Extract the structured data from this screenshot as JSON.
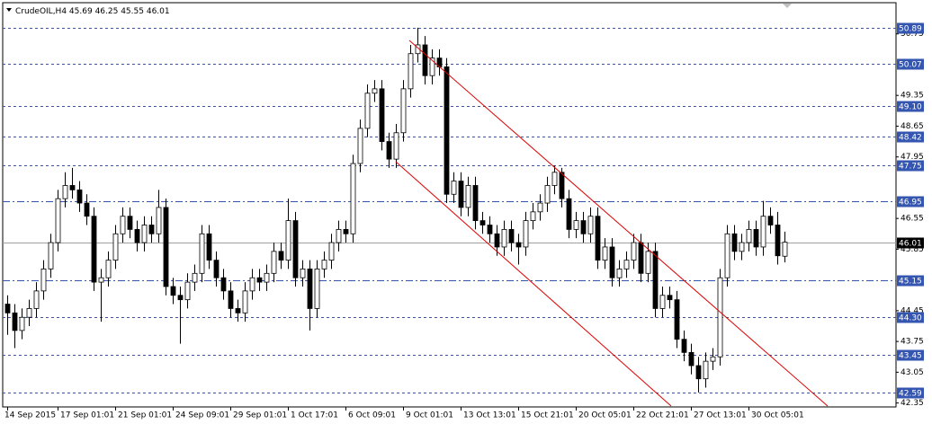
{
  "chart_data": {
    "type": "candlestick",
    "title": "CrudeOIL,H4",
    "categories": [
      "14 Sep 2015",
      null,
      null,
      null,
      null,
      null,
      null,
      "17 Sep 01:01",
      null,
      null,
      null,
      null,
      null,
      null,
      null,
      "21 Sep 01:01",
      null,
      null,
      null,
      null,
      null,
      null,
      null,
      "24 Sep 09:01",
      null,
      null,
      null,
      null,
      null,
      null,
      null,
      "29 Sep 01:01",
      null,
      null,
      null,
      null,
      null,
      null,
      null,
      "1 Oct 17:01",
      null,
      null,
      null,
      null,
      null,
      null,
      null,
      "6 Oct 09:01",
      null,
      null,
      null,
      null,
      null,
      null,
      null,
      "9 Oct 01:01",
      null,
      null,
      null,
      null,
      null,
      null,
      null,
      "13 Oct 13:01",
      null,
      null,
      null,
      null,
      null,
      null,
      null,
      "15 Oct 21:01",
      null,
      null,
      null,
      null,
      null,
      null,
      null,
      "20 Oct 05:01",
      null,
      null,
      null,
      null,
      null,
      null,
      null,
      "22 Oct 21:01",
      null,
      null,
      null,
      null,
      null,
      null,
      null,
      "27 Oct 13:01",
      null,
      null,
      null,
      null,
      null,
      null,
      null,
      "30 Oct 05:01",
      null,
      null,
      null,
      null,
      null
    ],
    "open": [
      44.6,
      44.4,
      44.0,
      44.3,
      44.5,
      44.9,
      45.4,
      46.0,
      47.0,
      47.3,
      47.2,
      46.9,
      46.6,
      45.1,
      45.2,
      45.6,
      46.2,
      46.6,
      46.3,
      46.0,
      46.4,
      46.2,
      46.8,
      45.0,
      44.8,
      44.7,
      45.1,
      45.3,
      46.2,
      45.6,
      45.2,
      44.9,
      44.5,
      44.4,
      44.9,
      45.2,
      45.1,
      45.3,
      45.8,
      45.6,
      46.5,
      45.2,
      45.4,
      44.5,
      45.4,
      45.6,
      46.0,
      46.3,
      46.2,
      47.8,
      48.6,
      49.4,
      49.5,
      48.3,
      47.9,
      48.5,
      49.5,
      50.3,
      50.5,
      49.8,
      50.2,
      50.0,
      47.1,
      47.4,
      46.8,
      47.3,
      46.5,
      46.4,
      46.2,
      45.9,
      46.3,
      46.0,
      45.9,
      46.5,
      46.7,
      46.9,
      47.3,
      47.6,
      47.0,
      46.3,
      46.5,
      46.2,
      46.6,
      45.6,
      45.9,
      45.2,
      45.4,
      45.6,
      46.0,
      45.3,
      45.8,
      44.5,
      44.8,
      44.7,
      43.8,
      43.5,
      43.2,
      42.9,
      43.3,
      43.4,
      45.2,
      46.2,
      45.8,
      46.0,
      46.3,
      45.9,
      46.6,
      46.4,
      45.69
    ],
    "high": [
      44.8,
      44.6,
      44.5,
      44.7,
      45.1,
      45.6,
      46.2,
      47.2,
      47.6,
      47.7,
      47.4,
      47.1,
      46.8,
      45.4,
      45.8,
      46.4,
      46.8,
      46.8,
      46.5,
      46.6,
      46.6,
      47.2,
      47.0,
      45.2,
      45.0,
      45.3,
      45.5,
      46.4,
      46.4,
      45.8,
      45.4,
      45.1,
      44.7,
      45.1,
      45.4,
      45.4,
      45.5,
      46.0,
      46.0,
      47.0,
      46.7,
      45.6,
      45.6,
      45.6,
      45.8,
      46.2,
      46.5,
      46.5,
      48.0,
      48.8,
      49.6,
      49.7,
      49.7,
      48.5,
      48.7,
      49.7,
      50.5,
      50.89,
      50.7,
      50.4,
      50.4,
      50.2,
      47.6,
      47.6,
      47.5,
      47.5,
      46.7,
      46.6,
      46.4,
      46.5,
      46.5,
      46.2,
      46.7,
      46.9,
      47.1,
      47.5,
      47.75,
      47.7,
      47.2,
      46.7,
      46.7,
      46.8,
      46.8,
      46.1,
      46.1,
      45.6,
      45.8,
      46.2,
      46.2,
      46.0,
      46.0,
      45.0,
      45.0,
      44.9,
      44.0,
      43.7,
      43.4,
      43.5,
      43.6,
      45.4,
      46.4,
      46.4,
      46.2,
      46.5,
      46.5,
      46.95,
      46.8,
      46.7,
      46.25
    ],
    "low": [
      43.9,
      43.6,
      43.8,
      44.1,
      44.3,
      44.7,
      45.2,
      45.8,
      46.8,
      47.0,
      46.7,
      46.4,
      44.9,
      44.2,
      45.0,
      45.4,
      46.0,
      46.1,
      45.8,
      45.8,
      46.0,
      46.0,
      44.8,
      44.6,
      43.7,
      44.5,
      44.9,
      45.1,
      45.4,
      45.0,
      44.7,
      44.3,
      44.2,
      44.2,
      44.7,
      44.9,
      44.9,
      45.1,
      45.4,
      45.4,
      45.0,
      45.0,
      44.0,
      44.3,
      45.2,
      45.4,
      45.8,
      46.0,
      46.0,
      47.6,
      48.4,
      49.2,
      48.1,
      47.7,
      47.7,
      48.3,
      49.3,
      50.1,
      49.6,
      49.6,
      49.8,
      46.9,
      46.9,
      46.6,
      46.6,
      46.3,
      46.2,
      46.0,
      45.7,
      45.7,
      45.8,
      45.5,
      45.7,
      46.3,
      46.5,
      46.7,
      47.1,
      46.8,
      46.1,
      46.1,
      46.0,
      46.0,
      45.4,
      45.4,
      45.0,
      45.0,
      45.2,
      45.4,
      45.1,
      45.1,
      44.3,
      44.3,
      44.5,
      43.6,
      43.3,
      43.0,
      42.59,
      42.7,
      43.1,
      43.2,
      45.0,
      45.6,
      45.6,
      45.8,
      45.7,
      45.7,
      46.2,
      45.5,
      45.55
    ],
    "close": [
      44.4,
      44.0,
      44.3,
      44.5,
      44.9,
      45.4,
      46.0,
      47.0,
      47.3,
      47.2,
      46.9,
      46.6,
      45.1,
      45.2,
      45.6,
      46.2,
      46.6,
      46.3,
      46.0,
      46.4,
      46.2,
      46.8,
      45.0,
      44.8,
      44.7,
      45.1,
      45.3,
      46.2,
      45.6,
      45.2,
      44.9,
      44.5,
      44.4,
      44.9,
      45.2,
      45.1,
      45.3,
      45.8,
      45.6,
      46.5,
      45.2,
      45.4,
      44.5,
      45.4,
      45.6,
      46.0,
      46.3,
      46.2,
      47.8,
      48.6,
      49.4,
      49.5,
      48.3,
      47.9,
      48.5,
      49.5,
      50.3,
      50.5,
      49.8,
      50.2,
      50.0,
      47.1,
      47.4,
      46.8,
      47.3,
      46.5,
      46.4,
      46.2,
      45.9,
      46.3,
      46.0,
      45.9,
      46.5,
      46.7,
      46.9,
      47.3,
      47.6,
      47.0,
      46.3,
      46.5,
      46.2,
      46.6,
      45.6,
      45.9,
      45.2,
      45.4,
      45.6,
      46.0,
      45.3,
      45.8,
      44.5,
      44.8,
      44.7,
      43.8,
      43.5,
      43.2,
      42.9,
      43.3,
      43.4,
      45.2,
      46.2,
      45.8,
      46.0,
      46.3,
      45.9,
      46.6,
      46.4,
      45.7,
      46.01
    ],
    "up_color": "#ffffff",
    "down_color": "#000000",
    "wick_color": "#000000",
    "ylim": [
      42.26,
      51.46
    ],
    "yticks": [
      50.75,
      49.35,
      48.65,
      47.95,
      46.55,
      45.85,
      44.45,
      43.75,
      43.05,
      42.35
    ],
    "levels": [
      50.89,
      50.07,
      {
        "value": 49.1,
        "label": "49.10"
      },
      48.42,
      47.75,
      46.95,
      45.15,
      {
        "value": 44.3,
        "label": "44.30"
      },
      43.45,
      42.59
    ],
    "level_styles": [
      "dashed",
      "dashed",
      "dashed",
      "dashed",
      "dashed",
      "dashdot",
      "dashdot",
      "dashed",
      "dashed",
      "dashed"
    ],
    "level_color": "#3556b0",
    "last_color": "#a0a0a0",
    "grid": false
  }
}
